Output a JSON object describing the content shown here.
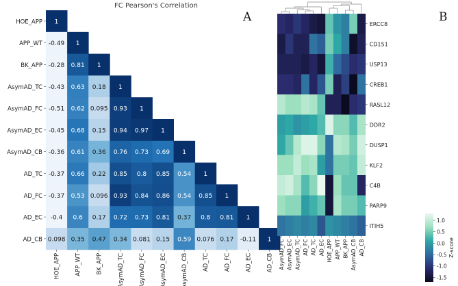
{
  "chart_data": [
    {
      "type": "heatmap",
      "panel_label": "A",
      "title": "FC Pearson's Correlation",
      "xlabel": "",
      "ylabel": "",
      "rows": [
        "HOE_APP",
        "APP_WT",
        "BK_APP",
        "AsymAD_TC",
        "AsymAD_FC",
        "AsymAD_EC",
        "AsymAD_CB",
        "AD_TC",
        "AD_FC",
        "AD_EC",
        "AD_CB"
      ],
      "columns": [
        "HOE_APP",
        "APP_WT",
        "BK_APP",
        "AsymAD_TC",
        "AsymAD_FC",
        "AsymAD_EC",
        "AsymAD_CB",
        "AD_TC",
        "AD_FC",
        "AD_EC",
        "AD_CB"
      ],
      "values": [
        [
          1
        ],
        [
          -0.49,
          1
        ],
        [
          -0.28,
          0.81,
          1
        ],
        [
          -0.43,
          0.63,
          0.18,
          1
        ],
        [
          -0.51,
          0.62,
          0.095,
          0.93,
          1
        ],
        [
          -0.45,
          0.68,
          0.15,
          0.94,
          0.97,
          1
        ],
        [
          -0.36,
          0.61,
          0.36,
          0.76,
          0.73,
          0.69,
          1
        ],
        [
          -0.37,
          0.66,
          0.22,
          0.85,
          0.8,
          0.85,
          0.54,
          1
        ],
        [
          -0.37,
          0.53,
          0.096,
          0.93,
          0.84,
          0.86,
          0.54,
          0.85,
          1
        ],
        [
          -0.4,
          0.6,
          0.17,
          0.72,
          0.73,
          0.81,
          0.37,
          0.8,
          0.81,
          1
        ],
        [
          0.098,
          0.35,
          0.47,
          0.34,
          0.081,
          0.15,
          0.59,
          0.076,
          0.17,
          -0.11,
          1
        ]
      ],
      "labels": [
        [
          "1"
        ],
        [
          "-0.49",
          "1"
        ],
        [
          "-0.28",
          "0.81",
          "1"
        ],
        [
          "-0.43",
          "0.63",
          "0.18",
          "1"
        ],
        [
          "-0.51",
          "0.62",
          "0.095",
          "0.93",
          "1"
        ],
        [
          "-0.45",
          "0.68",
          "0.15",
          "0.94",
          "0.97",
          "1"
        ],
        [
          "-0.36",
          "0.61",
          "0.36",
          "0.76",
          "0.73",
          "0.69",
          "1"
        ],
        [
          "-0.37",
          "0.66",
          "0.22",
          "0.85",
          "0.8",
          "0.85",
          "0.54",
          "1"
        ],
        [
          "-0.37",
          "0.53",
          "0.096",
          "0.93",
          "0.84",
          "0.86",
          "0.54",
          "0.85",
          "1"
        ],
        [
          "-0.4",
          "0.6",
          "0.17",
          "0.72",
          "0.73",
          "0.81",
          "0.37",
          "0.8",
          "0.81",
          "1"
        ],
        [
          "0.098",
          "0.35",
          "0.47",
          "0.34",
          "0.081",
          "0.15",
          "0.59",
          "0.076",
          "0.17",
          "-0.11",
          "1"
        ]
      ],
      "colormap": [
        "#eef4fb",
        "#c6dbef",
        "#6baed6",
        "#2171b5",
        "#08306b"
      ],
      "vrange": [
        -0.2,
        1
      ]
    },
    {
      "type": "heatmap",
      "panel_label": "B",
      "title": "",
      "xlabel": "",
      "ylabel": "",
      "dendrogram": "top",
      "rows": [
        "ERCC8",
        "CD151",
        "USP13",
        "CREB1",
        "RASL12",
        "DDR2",
        "DUSP1",
        "KLF2",
        "C4B",
        "PARP9",
        "ITIH5"
      ],
      "columns": [
        "AsymAD_FC",
        "AsymAD_EC",
        "AsymAD_TC",
        "AD_FC",
        "AD_TC",
        "AD_EC",
        "HOE_APP",
        "APP_WT",
        "BK_APP",
        "AsymAD_CB",
        "AD_CB"
      ],
      "values": [
        [
          -1.1,
          -1.2,
          -1.0,
          -1.2,
          -1.4,
          -1.5,
          0.4,
          -0.1,
          -0.3,
          0.5,
          -1.4
        ],
        [
          -1.4,
          -1.0,
          -1.3,
          -1.3,
          -0.4,
          -0.6,
          0.5,
          0.1,
          -0.3,
          -1.6,
          -1.3
        ],
        [
          -1.3,
          -1.3,
          -1.3,
          -1.4,
          -1.2,
          -1.5,
          0.2,
          -0.5,
          -0.8,
          -1.1,
          -1.0
        ],
        [
          -1.1,
          -1.1,
          -1.2,
          -0.4,
          -1.2,
          -0.7,
          0.5,
          -1.3,
          -0.9,
          -1.7,
          -0.4
        ],
        [
          0.9,
          0.7,
          0.7,
          0.9,
          0.8,
          0.4,
          -1.3,
          -1.3,
          -1.8,
          -1.1,
          -1.0
        ],
        [
          0.0,
          0.1,
          -0.1,
          0.0,
          0.1,
          0.3,
          1.2,
          0.6,
          0.6,
          0.3,
          0.8
        ],
        [
          0.1,
          0.4,
          0.9,
          1.2,
          1.2,
          0.6,
          -0.4,
          0.9,
          0.8,
          0.5,
          1.1
        ],
        [
          0.7,
          0.7,
          1.0,
          0.7,
          0.8,
          0.0,
          -0.4,
          0.5,
          0.5,
          0.4,
          1.0
        ],
        [
          1.0,
          1.1,
          0.8,
          0.3,
          0.6,
          1.3,
          -1.5,
          0.7,
          0.4,
          0.4,
          -1.2
        ],
        [
          0.7,
          0.6,
          0.6,
          0.0,
          0.2,
          0.4,
          -1.5,
          0.8,
          0.5,
          0.5,
          0.3
        ],
        [
          -0.4,
          -0.3,
          -0.2,
          -0.3,
          -0.2,
          -0.7,
          -0.1,
          -0.2,
          -0.3,
          -0.4,
          -0.6
        ]
      ],
      "colormap": [
        "#0b0a1f",
        "#2a2c6e",
        "#2f6aa0",
        "#2ea8a6",
        "#9de0c0",
        "#e9f8ef"
      ],
      "vrange": [
        -1.7,
        1.3
      ],
      "colorbar": {
        "label": "Z-score",
        "ticks": [
          1.0,
          0.5,
          0.0,
          -0.5,
          -1.0,
          -1.5
        ],
        "tick_labels": [
          "1.0",
          "0.5",
          "0.0",
          "-0.5",
          "-1.0",
          "-1.5"
        ]
      }
    }
  ]
}
